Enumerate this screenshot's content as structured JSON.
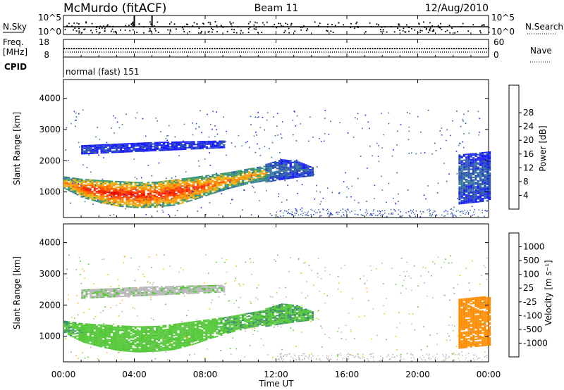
{
  "header": {
    "station": "McMurdo (fitACF)",
    "beam": "Beam 11",
    "date": "12/Aug/2010"
  },
  "strips": {
    "nsky_label": "N.Sky",
    "nsky_ticks": [
      "10^5",
      "10^0"
    ],
    "nsearch_label": "N.Search",
    "nsearch_ticks": [
      "10^5",
      "10^0"
    ],
    "freq_label_1": "Freq.",
    "freq_label_2": "[MHz]",
    "freq_ticks": [
      "18",
      "8"
    ],
    "nave_label": "Nave",
    "nave_ticks": [
      "60",
      "0"
    ],
    "cpid_label": "CPID",
    "cpid_value": "normal (fast) 151"
  },
  "panels": {
    "ylabel": "Slant Range [km]",
    "xlabel": "Time UT",
    "power_label": "Power [dB]",
    "velocity_label": "Velocity [m s⁻¹]"
  },
  "chart_data": {
    "type": "heatmap",
    "x_tick_labels": [
      "00:00",
      "04:00",
      "08:00",
      "12:00",
      "16:00",
      "20:00",
      "00:00"
    ],
    "x_ticks_hours": [
      0,
      4,
      8,
      12,
      16,
      20,
      24
    ],
    "xlim_hours": [
      0,
      24
    ],
    "y_ticks_km": [
      1000,
      2000,
      3000,
      4000
    ],
    "ylim_km": [
      180,
      4600
    ],
    "power_colorbar": {
      "tick_labels": [
        "4",
        "8",
        "12",
        "16",
        "20",
        "24",
        "28"
      ],
      "colors": [
        "#1a1aff",
        "#2850b4",
        "#3a7a9a",
        "#3c9a6a",
        "#e8b418",
        "#ff8c00",
        "#ff5000",
        "#ff1e00",
        "#e00000"
      ]
    },
    "velocity_colorbar": {
      "tick_labels": [
        "1000",
        "500",
        "100",
        "25",
        "-25",
        "-100",
        "-500",
        "-1000"
      ],
      "colors": [
        "#2050b8",
        "#3a75a8",
        "#3f8f6c",
        "#55c83a",
        "#b8b8b8",
        "#f5c020",
        "#ff8c00",
        "#f25a00",
        "#e00000"
      ]
    },
    "echo_bands": [
      {
        "name": "main",
        "start_h": 0,
        "end_h": 11.4,
        "lower_km": [
          1100,
          800,
          640,
          520,
          480,
          500,
          560,
          720,
          920,
          1100,
          1250,
          1350
        ],
        "upper_km": [
          1500,
          1420,
          1380,
          1350,
          1320,
          1330,
          1400,
          1480,
          1560,
          1640,
          1750,
          1850
        ],
        "power_db": [
          20,
          26,
          28,
          29,
          28,
          27,
          28,
          26,
          24,
          22,
          20,
          18
        ],
        "velocity_ms": [
          100,
          80,
          60,
          60,
          50,
          50,
          60,
          70,
          80,
          90,
          90,
          100
        ]
      },
      {
        "name": "late-extension",
        "start_h": 11.4,
        "end_h": 14.0,
        "lower_km": [
          1300,
          1380,
          1450,
          1500
        ],
        "upper_km": [
          1900,
          2050,
          2000,
          1800
        ],
        "power_db": [
          10,
          8,
          8,
          6
        ],
        "velocity_ms": [
          90,
          100,
          100,
          90
        ]
      },
      {
        "name": "far-range",
        "start_h": 1.0,
        "end_h": 9.0,
        "lower_km": [
          2200,
          2300,
          2400
        ],
        "upper_km": [
          2500,
          2600,
          2650
        ],
        "power_db": [
          5,
          4,
          4
        ],
        "velocity_ms": [
          20,
          10,
          20
        ]
      },
      {
        "name": "evening",
        "start_h": 22.3,
        "end_h": 24,
        "lower_km": [
          600,
          700
        ],
        "upper_km": [
          2200,
          2300
        ],
        "power_db": [
          8,
          6
        ],
        "velocity_ms": [
          -120,
          -300
        ]
      }
    ]
  }
}
